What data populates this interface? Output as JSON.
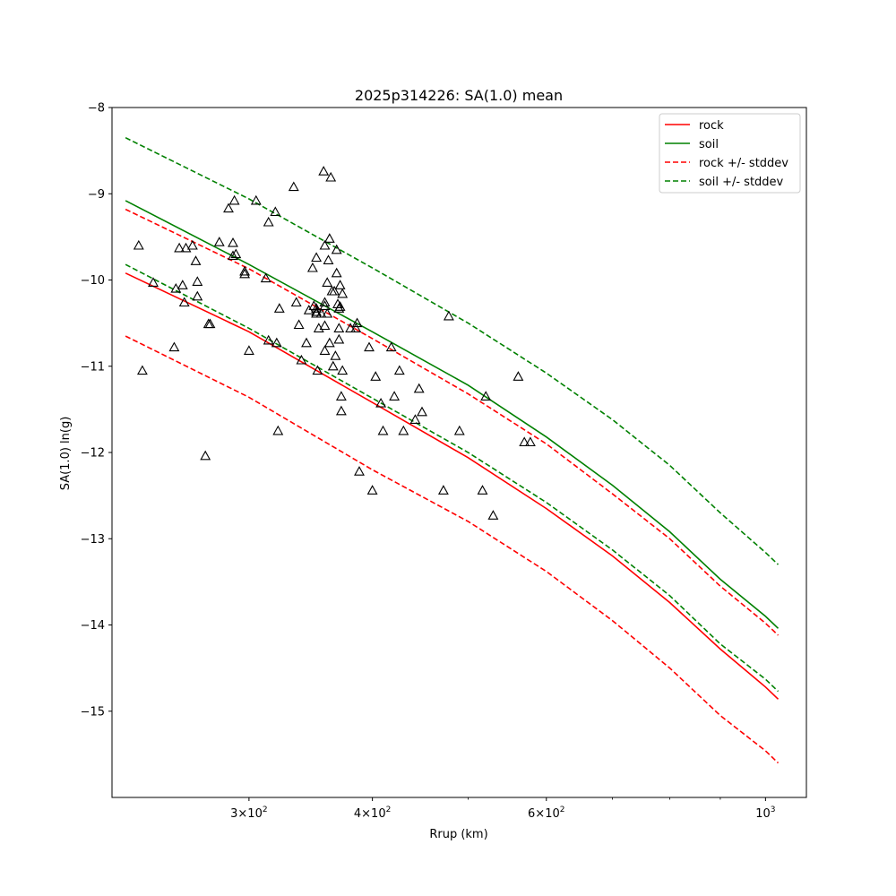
{
  "chart_data": {
    "type": "line",
    "title": "2025p314226: SA(1.0) mean",
    "xlabel": "Rrup (km)",
    "ylabel": "SA(1.0) ln(g)",
    "xscale": "log",
    "xlim": [
      218,
      1100
    ],
    "ylim": [
      -16.0,
      -8.0
    ],
    "yticks": [
      -8,
      -9,
      -10,
      -11,
      -12,
      -13,
      -14,
      -15
    ],
    "ytick_labels": [
      "−8",
      "−9",
      "−10",
      "−11",
      "−12",
      "−13",
      "−14",
      "−15"
    ],
    "xticks_major": [
      {
        "value": 300,
        "base": "3×10",
        "exp": "2"
      },
      {
        "value": 400,
        "base": "4×10",
        "exp": "2"
      },
      {
        "value": 600,
        "base": "6×10",
        "exp": "2"
      },
      {
        "value": 1000,
        "base": "10",
        "exp": "3"
      }
    ],
    "xticks_minor": [
      500,
      700,
      800,
      900
    ],
    "grid": false,
    "legend_position": "top-right",
    "series": [
      {
        "name": "rock",
        "color": "#ff0000",
        "style": "solid",
        "x": [
          225,
          300,
          400,
          500,
          600,
          700,
          800,
          900,
          1000,
          1030
        ],
        "y": [
          -9.92,
          -10.6,
          -11.42,
          -12.06,
          -12.65,
          -13.2,
          -13.74,
          -14.28,
          -14.72,
          -14.86
        ]
      },
      {
        "name": "soil",
        "color": "#008000",
        "style": "solid",
        "x": [
          225,
          300,
          400,
          500,
          600,
          700,
          800,
          900,
          1000,
          1030
        ],
        "y": [
          -9.08,
          -9.82,
          -10.6,
          -11.22,
          -11.82,
          -12.38,
          -12.92,
          -13.47,
          -13.9,
          -14.04
        ]
      },
      {
        "name": "rock +/- stddev",
        "color": "#ff0000",
        "style": "dashed",
        "x": [
          225,
          300,
          400,
          500,
          600,
          700,
          800,
          900,
          1000,
          1030
        ],
        "y": [
          -9.18,
          -9.87,
          -10.68,
          -11.32,
          -11.9,
          -12.48,
          -13.0,
          -13.55,
          -13.98,
          -14.12
        ]
      },
      {
        "name": "rock +/- stddev",
        "color": "#ff0000",
        "style": "dashed",
        "legend": false,
        "x": [
          225,
          300,
          400,
          500,
          600,
          700,
          800,
          900,
          1000,
          1030
        ],
        "y": [
          -10.65,
          -11.36,
          -12.2,
          -12.8,
          -13.38,
          -13.95,
          -14.5,
          -15.05,
          -15.46,
          -15.6
        ]
      },
      {
        "name": "soil +/- stddev",
        "color": "#008000",
        "style": "dashed",
        "x": [
          225,
          300,
          400,
          500,
          600,
          700,
          800,
          900,
          1000,
          1030
        ],
        "y": [
          -8.35,
          -9.06,
          -9.86,
          -10.5,
          -11.08,
          -11.62,
          -12.15,
          -12.7,
          -13.16,
          -13.3
        ]
      },
      {
        "name": "soil +/- stddev",
        "color": "#008000",
        "style": "dashed",
        "legend": false,
        "x": [
          225,
          300,
          400,
          500,
          600,
          700,
          800,
          900,
          1000,
          1030
        ],
        "y": [
          -9.82,
          -10.56,
          -11.37,
          -12.0,
          -12.58,
          -13.13,
          -13.66,
          -14.22,
          -14.63,
          -14.77
        ]
      }
    ],
    "observations": {
      "marker": "triangle",
      "points": [
        [
          232,
          -9.6
        ],
        [
          234,
          -11.05
        ],
        [
          240,
          -10.03
        ],
        [
          252,
          -10.78
        ],
        [
          253,
          -10.1
        ],
        [
          255,
          -9.63
        ],
        [
          257,
          -10.06
        ],
        [
          258,
          -10.26
        ],
        [
          259,
          -9.63
        ],
        [
          263,
          -9.6
        ],
        [
          265,
          -9.78
        ],
        [
          266,
          -10.02
        ],
        [
          266,
          -10.19
        ],
        [
          271,
          -12.04
        ],
        [
          273,
          -10.51
        ],
        [
          274,
          -10.51
        ],
        [
          280,
          -9.56
        ],
        [
          286,
          -9.17
        ],
        [
          289,
          -9.57
        ],
        [
          289,
          -9.72
        ],
        [
          290,
          -9.08
        ],
        [
          291,
          -9.7
        ],
        [
          297,
          -9.9
        ],
        [
          297,
          -9.93
        ],
        [
          300,
          -10.82
        ],
        [
          305,
          -9.08
        ],
        [
          312,
          -9.98
        ],
        [
          314,
          -9.33
        ],
        [
          314,
          -10.7
        ],
        [
          319,
          -9.21
        ],
        [
          320,
          -10.73
        ],
        [
          321,
          -11.75
        ],
        [
          322,
          -10.33
        ],
        [
          333,
          -8.92
        ],
        [
          335,
          -10.26
        ],
        [
          337,
          -10.52
        ],
        [
          339,
          -10.93
        ],
        [
          343,
          -10.73
        ],
        [
          345,
          -10.35
        ],
        [
          348,
          -9.86
        ],
        [
          349,
          -10.3
        ],
        [
          351,
          -10.33
        ],
        [
          351,
          -10.37
        ],
        [
          351,
          -10.39
        ],
        [
          351,
          -9.74
        ],
        [
          352,
          -11.05
        ],
        [
          353,
          -10.56
        ],
        [
          355,
          -10.39
        ],
        [
          357,
          -8.74
        ],
        [
          358,
          -9.6
        ],
        [
          358,
          -10.3
        ],
        [
          358,
          -10.26
        ],
        [
          358,
          -10.53
        ],
        [
          358,
          -10.82
        ],
        [
          360,
          -10.03
        ],
        [
          360,
          -10.39
        ],
        [
          361,
          -9.77
        ],
        [
          362,
          -9.52
        ],
        [
          362,
          -10.73
        ],
        [
          363,
          -8.81
        ],
        [
          364,
          -10.13
        ],
        [
          365,
          -11.0
        ],
        [
          366,
          -10.13
        ],
        [
          367,
          -10.88
        ],
        [
          368,
          -9.92
        ],
        [
          368,
          -9.65
        ],
        [
          369,
          -10.28
        ],
        [
          370,
          -10.69
        ],
        [
          370,
          -10.33
        ],
        [
          370,
          -10.56
        ],
        [
          371,
          -10.06
        ],
        [
          371,
          -10.31
        ],
        [
          372,
          -11.52
        ],
        [
          372,
          -11.35
        ],
        [
          373,
          -10.16
        ],
        [
          373,
          -11.05
        ],
        [
          380,
          -10.56
        ],
        [
          385,
          -10.56
        ],
        [
          386,
          -10.5
        ],
        [
          388,
          -12.22
        ],
        [
          397,
          -10.78
        ],
        [
          400,
          -12.44
        ],
        [
          403,
          -11.12
        ],
        [
          408,
          -11.43
        ],
        [
          410,
          -11.75
        ],
        [
          418,
          -10.78
        ],
        [
          421,
          -11.35
        ],
        [
          426,
          -11.05
        ],
        [
          430,
          -11.75
        ],
        [
          442,
          -11.62
        ],
        [
          446,
          -11.26
        ],
        [
          449,
          -11.53
        ],
        [
          472,
          -12.44
        ],
        [
          478,
          -10.42
        ],
        [
          490,
          -11.75
        ],
        [
          517,
          -12.44
        ],
        [
          521,
          -11.35
        ],
        [
          530,
          -12.73
        ],
        [
          562,
          -11.12
        ],
        [
          570,
          -11.88
        ],
        [
          578,
          -11.88
        ]
      ]
    }
  }
}
